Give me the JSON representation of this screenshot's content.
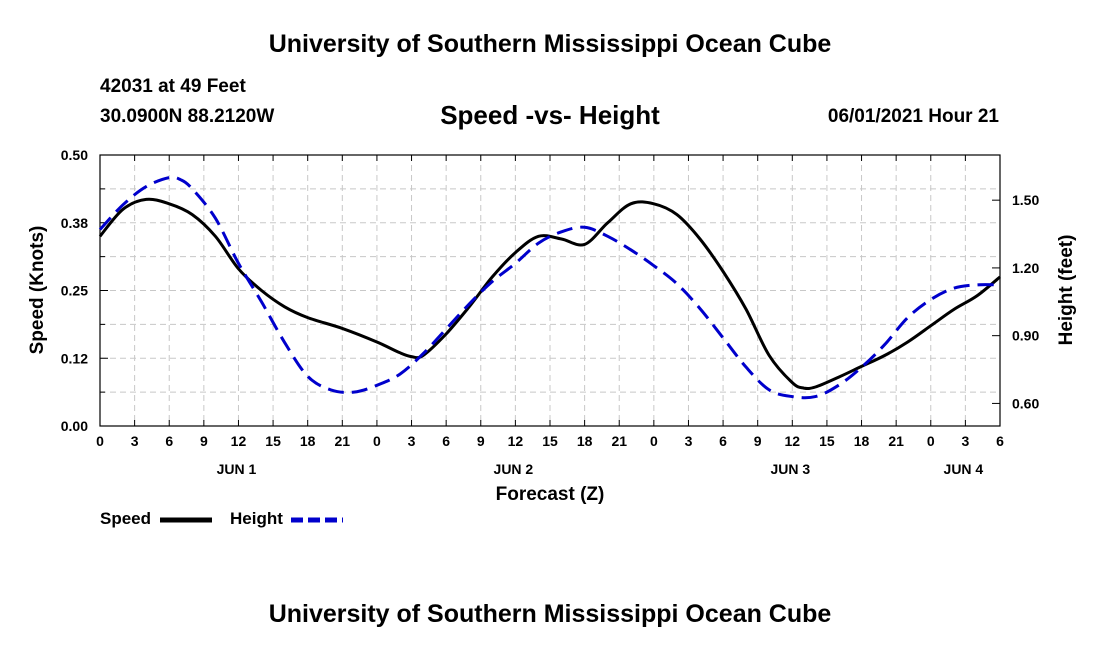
{
  "header": {
    "title": "University of Southern Mississippi Ocean Cube",
    "station": "42031 at 49 Feet",
    "coords": "30.0900N  88.2120W",
    "chart_title": "Speed -vs- Height",
    "date": "06/01/2021 Hour 21"
  },
  "footer": {
    "title": "University of Southern Mississippi Ocean Cube"
  },
  "legend": {
    "speed_label": "Speed",
    "height_label": "Height"
  },
  "colors": {
    "speed": "#000000",
    "height": "#0000cc",
    "grid": "#c8c8c8"
  },
  "chart_data": {
    "type": "line",
    "title": "Speed -vs- Height",
    "xlabel": "Forecast (Z)",
    "ylabel_left": "Speed (Knots)",
    "ylabel_right": "Height (feet)",
    "x_unit": "hours since Jun 1 00Z",
    "xlim": [
      0,
      78
    ],
    "ylim_left": [
      0,
      0.5
    ],
    "ylim_right": [
      0.5,
      1.7
    ],
    "x_ticks": [
      0,
      3,
      6,
      9,
      12,
      15,
      18,
      21,
      24,
      27,
      30,
      33,
      36,
      39,
      42,
      45,
      48,
      51,
      54,
      57,
      60,
      63,
      66,
      69,
      72,
      75,
      78
    ],
    "x_tick_labels": [
      "0",
      "3",
      "6",
      "9",
      "12",
      "15",
      "18",
      "21",
      "0",
      "3",
      "6",
      "9",
      "12",
      "15",
      "18",
      "21",
      "0",
      "3",
      "6",
      "9",
      "12",
      "15",
      "18",
      "21",
      "0",
      "3",
      "6"
    ],
    "y_left_ticks": [
      0.0,
      0.125,
      0.25,
      0.375,
      0.5
    ],
    "y_left_tick_labels": [
      "0.00",
      "0.12",
      "0.25",
      "0.38",
      "0.50"
    ],
    "y_right_ticks": [
      0.6,
      0.9,
      1.2,
      1.5
    ],
    "y_right_tick_labels": [
      "0.60",
      "0.90",
      "1.20",
      "1.50"
    ],
    "day_labels": [
      {
        "x": 12,
        "label": "JUN 1"
      },
      {
        "x": 36,
        "label": "JUN 2"
      },
      {
        "x": 60,
        "label": "JUN 3"
      },
      {
        "x": 75,
        "label": "JUN 4"
      }
    ],
    "series": [
      {
        "name": "Speed",
        "axis": "left",
        "style": "solid",
        "x": [
          0,
          2,
          4,
          6,
          8,
          10,
          12,
          14,
          16,
          18,
          21,
          24,
          26,
          27,
          28,
          30,
          32,
          34,
          36,
          38,
          40,
          42,
          44,
          46,
          48,
          50,
          52,
          54,
          56,
          58,
          60,
          61,
          62,
          64,
          66,
          68,
          70,
          72,
          74,
          76,
          78
        ],
        "y": [
          0.35,
          0.4,
          0.418,
          0.41,
          0.39,
          0.35,
          0.29,
          0.25,
          0.22,
          0.2,
          0.18,
          0.155,
          0.135,
          0.128,
          0.13,
          0.17,
          0.22,
          0.275,
          0.32,
          0.35,
          0.345,
          0.335,
          0.375,
          0.41,
          0.41,
          0.39,
          0.345,
          0.285,
          0.215,
          0.13,
          0.08,
          0.07,
          0.072,
          0.09,
          0.11,
          0.13,
          0.155,
          0.185,
          0.215,
          0.24,
          0.275
        ]
      },
      {
        "name": "Height",
        "axis": "right",
        "style": "dashed",
        "x": [
          0,
          2,
          4,
          6,
          7,
          8,
          10,
          12,
          14,
          16,
          18,
          20,
          22,
          24,
          26,
          28,
          30,
          32,
          34,
          36,
          38,
          40,
          42,
          44,
          46,
          48,
          50,
          52,
          54,
          56,
          58,
          60,
          62,
          64,
          66,
          68,
          70,
          72,
          74,
          76,
          78
        ],
        "y": [
          1.37,
          1.48,
          1.56,
          1.6,
          1.59,
          1.55,
          1.42,
          1.22,
          1.05,
          0.87,
          0.72,
          0.66,
          0.65,
          0.68,
          0.73,
          0.82,
          0.93,
          1.04,
          1.14,
          1.22,
          1.31,
          1.36,
          1.38,
          1.34,
          1.28,
          1.21,
          1.13,
          1.02,
          0.89,
          0.76,
          0.66,
          0.63,
          0.63,
          0.68,
          0.76,
          0.86,
          0.98,
          1.06,
          1.11,
          1.125,
          1.125
        ]
      }
    ]
  }
}
